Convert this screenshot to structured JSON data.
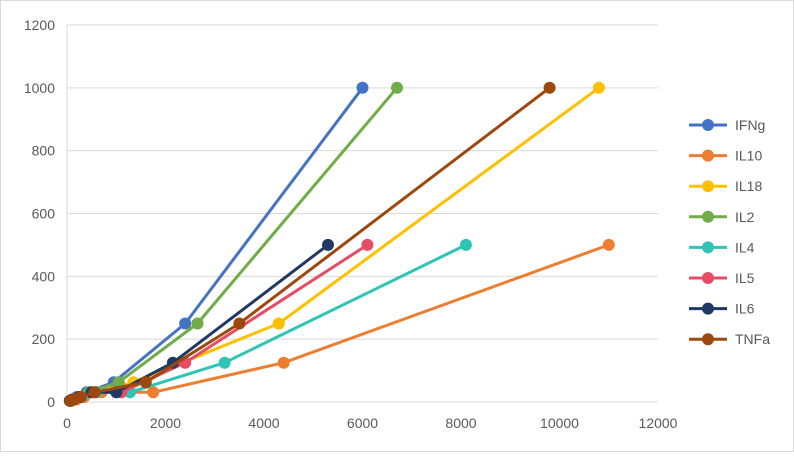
{
  "chart_data": {
    "type": "line",
    "title": "",
    "xlabel": "",
    "ylabel": "",
    "xlim": [
      0,
      12000
    ],
    "ylim": [
      0,
      1200
    ],
    "x_ticks": [
      "0",
      "2000",
      "4000",
      "6000",
      "8000",
      "10000",
      "12000"
    ],
    "y_ticks": [
      "0",
      "200",
      "400",
      "600",
      "800",
      "1000",
      "1200"
    ],
    "grid": "horizontal",
    "legend_position": "right",
    "series": [
      {
        "name": "IFNg",
        "color": "#4472C4",
        "points": [
          [
            55,
            4
          ],
          [
            100,
            8
          ],
          [
            200,
            16
          ],
          [
            400,
            31
          ],
          [
            950,
            63
          ],
          [
            2400,
            250
          ],
          [
            6000,
            1000
          ]
        ]
      },
      {
        "name": "IL10",
        "color": "#ED7D31",
        "points": [
          [
            90,
            4
          ],
          [
            190,
            8
          ],
          [
            350,
            16
          ],
          [
            700,
            31
          ],
          [
            1750,
            31
          ],
          [
            4400,
            125
          ],
          [
            11000,
            500
          ]
        ]
      },
      {
        "name": "IL18",
        "color": "#FFC000",
        "points": [
          [
            75,
            4
          ],
          [
            150,
            8
          ],
          [
            300,
            16
          ],
          [
            600,
            31
          ],
          [
            1350,
            63
          ],
          [
            4300,
            250
          ],
          [
            10800,
            1000
          ]
        ]
      },
      {
        "name": "IL2",
        "color": "#70AD47",
        "points": [
          [
            60,
            4
          ],
          [
            120,
            8
          ],
          [
            250,
            16
          ],
          [
            450,
            31
          ],
          [
            1050,
            63
          ],
          [
            2650,
            250
          ],
          [
            6700,
            1000
          ]
        ]
      },
      {
        "name": "IL4",
        "color": "#2EC4B6",
        "points": [
          [
            80,
            4
          ],
          [
            150,
            8
          ],
          [
            300,
            16
          ],
          [
            600,
            31
          ],
          [
            1280,
            31
          ],
          [
            3200,
            125
          ],
          [
            8100,
            500
          ]
        ]
      },
      {
        "name": "IL5",
        "color": "#E84C64",
        "points": [
          [
            70,
            4
          ],
          [
            140,
            8
          ],
          [
            280,
            16
          ],
          [
            560,
            31
          ],
          [
            1100,
            31
          ],
          [
            2400,
            125
          ],
          [
            6100,
            500
          ]
        ]
      },
      {
        "name": "IL6",
        "color": "#203864",
        "points": [
          [
            60,
            4
          ],
          [
            120,
            8
          ],
          [
            250,
            16
          ],
          [
            500,
            31
          ],
          [
            1000,
            31
          ],
          [
            2150,
            125
          ],
          [
            5300,
            500
          ]
        ]
      },
      {
        "name": "TNFa",
        "color": "#9E480E",
        "points": [
          [
            70,
            4
          ],
          [
            140,
            8
          ],
          [
            280,
            16
          ],
          [
            560,
            31
          ],
          [
            1600,
            63
          ],
          [
            3500,
            250
          ],
          [
            9800,
            1000
          ]
        ]
      }
    ]
  }
}
